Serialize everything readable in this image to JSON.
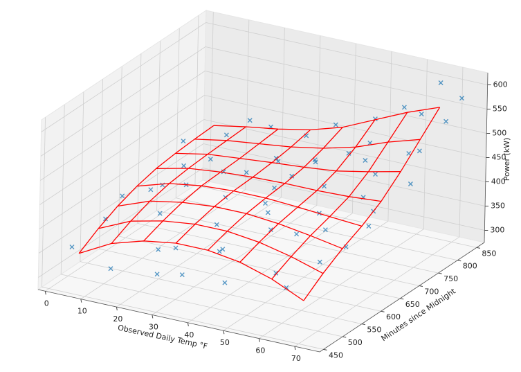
{
  "chart_data": {
    "type": "scatter3d",
    "xlabel": "Observed Daily Temp °F",
    "ylabel": "Minutes since Midnight",
    "zlabel": "Power (kW)",
    "xlim": [
      -2,
      77
    ],
    "ylim": [
      440,
      870
    ],
    "zlim": [
      275,
      625
    ],
    "xticks": [
      0,
      10,
      20,
      30,
      40,
      50,
      60,
      70
    ],
    "yticks": [
      450,
      500,
      550,
      600,
      650,
      700,
      750,
      800,
      850
    ],
    "zticks": [
      300,
      350,
      400,
      450,
      500,
      550,
      600
    ],
    "grid": true,
    "series": [
      {
        "color": "#1f77b4",
        "marker": "x",
        "x": [
          3,
          8,
          12,
          15,
          18,
          20,
          22,
          25,
          27,
          30,
          32,
          34,
          36,
          38,
          40,
          42,
          44,
          46,
          48,
          50,
          52,
          54,
          56,
          58,
          60,
          62,
          64,
          66,
          68,
          70,
          72,
          74,
          5,
          10,
          14,
          24,
          28,
          33,
          37,
          41,
          45,
          49,
          53,
          57,
          61,
          65,
          69,
          73,
          2,
          16,
          26,
          35,
          43,
          47,
          55,
          63,
          67,
          71,
          19,
          39
        ],
        "y": [
          480,
          520,
          600,
          470,
          700,
          550,
          820,
          500,
          650,
          760,
          480,
          590,
          700,
          840,
          520,
          620,
          730,
          800,
          460,
          560,
          680,
          780,
          850,
          500,
          610,
          720,
          820,
          540,
          660,
          760,
          850,
          700,
          750,
          650,
          840,
          580,
          470,
          810,
          540,
          760,
          660,
          840,
          600,
          740,
          500,
          860,
          580,
          800,
          620,
          760,
          720,
          470,
          500,
          580,
          640,
          680,
          760,
          620,
          620,
          680
        ],
        "z": [
          350,
          395,
          420,
          330,
          440,
          410,
          450,
          370,
          455,
          430,
          395,
          445,
          410,
          470,
          380,
          430,
          465,
          445,
          360,
          420,
          450,
          490,
          530,
          375,
          410,
          470,
          545,
          390,
          435,
          510,
          575,
          480,
          430,
          400,
          440,
          460,
          340,
          455,
          420,
          440,
          470,
          500,
          395,
          480,
          350,
          590,
          405,
          555,
          380,
          455,
          415,
          350,
          400,
          440,
          420,
          445,
          500,
          430,
          470,
          480
        ]
      }
    ],
    "surface": {
      "color": "red",
      "x": [
        5,
        14,
        23,
        32,
        41,
        50,
        59,
        68
      ],
      "y": [
        480,
        530,
        580,
        630,
        680,
        730,
        780,
        830
      ],
      "z": [
        [
          340,
          375,
          395,
          405,
          405,
          395,
          375,
          345
        ],
        [
          365,
          395,
          410,
          418,
          418,
          410,
          395,
          375
        ],
        [
          385,
          410,
          422,
          428,
          428,
          422,
          412,
          400
        ],
        [
          400,
          420,
          430,
          434,
          434,
          430,
          425,
          420
        ],
        [
          410,
          425,
          432,
          436,
          438,
          438,
          440,
          445
        ],
        [
          415,
          428,
          434,
          440,
          445,
          452,
          465,
          480
        ],
        [
          418,
          430,
          438,
          446,
          458,
          475,
          500,
          520
        ],
        [
          420,
          432,
          442,
          455,
          475,
          505,
          535,
          560
        ]
      ]
    }
  }
}
